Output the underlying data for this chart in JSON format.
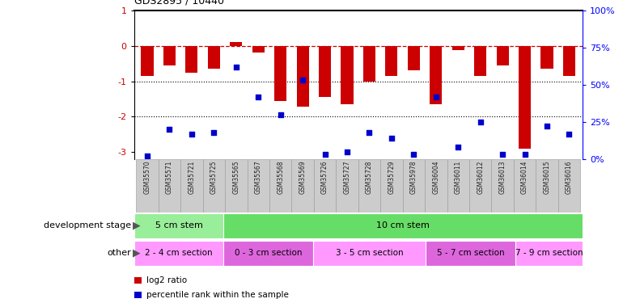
{
  "title": "GDS2895 / 10440",
  "samples": [
    "GSM35570",
    "GSM35571",
    "GSM35721",
    "GSM35725",
    "GSM35565",
    "GSM35567",
    "GSM35568",
    "GSM35569",
    "GSM35726",
    "GSM35727",
    "GSM35728",
    "GSM35729",
    "GSM35978",
    "GSM36004",
    "GSM36011",
    "GSM36012",
    "GSM36013",
    "GSM36014",
    "GSM36015",
    "GSM36016"
  ],
  "log2_ratio": [
    -0.85,
    -0.55,
    -0.75,
    -0.65,
    0.12,
    -0.18,
    -1.55,
    -1.72,
    -1.45,
    -1.65,
    -1.0,
    -0.85,
    -0.68,
    -1.65,
    -0.12,
    -0.85,
    -0.55,
    -2.9,
    -0.65,
    -0.85
  ],
  "percentile": [
    2,
    20,
    17,
    18,
    62,
    42,
    30,
    53,
    3,
    5,
    18,
    14,
    3,
    42,
    8,
    25,
    3,
    3,
    22,
    17
  ],
  "bar_color": "#cc0000",
  "dot_color": "#0000cc",
  "ylim": [
    -3.2,
    1.0
  ],
  "yticks_left": [
    -3,
    -2,
    -1,
    0,
    1
  ],
  "yticks_right": [
    0,
    25,
    50,
    75,
    100
  ],
  "hlines": [
    {
      "y": 0.0,
      "style": "dashed",
      "color": "#cc0000",
      "lw": 0.9
    },
    {
      "y": -1.0,
      "style": "dotted",
      "color": "#000000",
      "lw": 0.8
    },
    {
      "y": -2.0,
      "style": "dotted",
      "color": "#000000",
      "lw": 0.8
    }
  ],
  "groups_dev": [
    {
      "label": "5 cm stem",
      "start": 0,
      "end": 4,
      "color": "#99ee99"
    },
    {
      "label": "10 cm stem",
      "start": 4,
      "end": 20,
      "color": "#66dd66"
    }
  ],
  "groups_other": [
    {
      "label": "2 - 4 cm section",
      "start": 0,
      "end": 4,
      "color": "#ff99ff"
    },
    {
      "label": "0 - 3 cm section",
      "start": 4,
      "end": 8,
      "color": "#dd66dd"
    },
    {
      "label": "3 - 5 cm section",
      "start": 8,
      "end": 13,
      "color": "#ff99ff"
    },
    {
      "label": "5 - 7 cm section",
      "start": 13,
      "end": 17,
      "color": "#dd66dd"
    },
    {
      "label": "7 - 9 cm section",
      "start": 17,
      "end": 20,
      "color": "#ff99ff"
    }
  ],
  "legend": [
    {
      "label": "log2 ratio",
      "color": "#cc0000"
    },
    {
      "label": "percentile rank within the sample",
      "color": "#0000cc"
    }
  ],
  "tick_label_bg": "#cccccc",
  "tick_label_border": "#999999"
}
